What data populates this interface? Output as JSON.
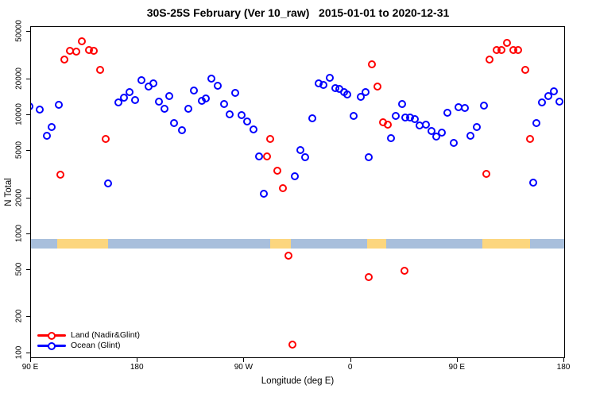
{
  "header": {
    "title": "30S-25S February (Ver 10_raw)   2015-01-01 to 2020-12-31"
  },
  "chart_data": {
    "type": "scatter",
    "title": "30S-25S February (Ver 10_raw)  2015-01-01 to 2020-12-31",
    "xlabel": "Longitude (deg E)",
    "ylabel": "N Total",
    "x_axis": {
      "min_deg": 90,
      "max_deg": 540,
      "note": "axis runs eastward from 90E through 180, 90W, 0, 90E to 180 (450 deg span)",
      "ticks": [
        {
          "deg": 90,
          "label": "90 E"
        },
        {
          "deg": 180,
          "label": "180"
        },
        {
          "deg": 270,
          "label": "90 W"
        },
        {
          "deg": 360,
          "label": "0"
        },
        {
          "deg": 450,
          "label": "90 E"
        },
        {
          "deg": 540,
          "label": "180"
        }
      ]
    },
    "y_axis": {
      "scale": "log",
      "min": 92,
      "max": 55000,
      "ticks": [
        100,
        200,
        500,
        1000,
        2000,
        5000,
        10000,
        20000,
        50000
      ]
    },
    "legend": {
      "position": "bottom-left",
      "items": [
        {
          "label": "Land (Nadir&Glint)",
          "color": "#ff0000"
        },
        {
          "label": "Ocean (Glint)",
          "color": "#0000ff"
        }
      ]
    },
    "coastline_band": {
      "value_from": 750,
      "value_to": 910,
      "ocean_color": "#a8bfdc",
      "land_color": "#fcd67e",
      "segments": [
        {
          "type": "ocean",
          "from_deg": 90,
          "to_deg": 112
        },
        {
          "type": "land",
          "from_deg": 112,
          "to_deg": 155
        },
        {
          "type": "ocean",
          "from_deg": 155,
          "to_deg": 292
        },
        {
          "type": "land",
          "from_deg": 292,
          "to_deg": 309
        },
        {
          "type": "ocean",
          "from_deg": 309,
          "to_deg": 374
        },
        {
          "type": "land",
          "from_deg": 374,
          "to_deg": 390
        },
        {
          "type": "ocean",
          "from_deg": 390,
          "to_deg": 471
        },
        {
          "type": "land",
          "from_deg": 471,
          "to_deg": 511
        },
        {
          "type": "ocean",
          "from_deg": 511,
          "to_deg": 540
        }
      ]
    },
    "series": [
      {
        "name": "Land (Nadir&Glint)",
        "color": "#ff0000",
        "points": [
          [
            132.8,
            41700
          ],
          [
            122.8,
            34700
          ],
          [
            128.1,
            34200
          ],
          [
            138.8,
            35300
          ],
          [
            142.8,
            34700
          ],
          [
            118.1,
            29200
          ],
          [
            148.2,
            23900
          ],
          [
            152.9,
            6310
          ],
          [
            114.7,
            3160
          ],
          [
            291.9,
            6310
          ],
          [
            289.3,
            4470
          ],
          [
            297.9,
            3390
          ],
          [
            302.6,
            2430
          ],
          [
            307.3,
            658
          ],
          [
            310.7,
            117
          ],
          [
            374.9,
            437
          ],
          [
            405.0,
            493
          ],
          [
            377.5,
            26700
          ],
          [
            382.2,
            17400
          ],
          [
            386.9,
            8710
          ],
          [
            390.9,
            8320
          ],
          [
            474.5,
            3210
          ],
          [
            477.2,
            29200
          ],
          [
            483.2,
            35300
          ],
          [
            487.2,
            35300
          ],
          [
            491.9,
            40600
          ],
          [
            497.2,
            35300
          ],
          [
            501.2,
            35300
          ],
          [
            507.2,
            23900
          ],
          [
            511.2,
            6310
          ]
        ]
      },
      {
        "name": "Ocean (Glint)",
        "color": "#0000ff",
        "points": [
          [
            88.7,
            11900
          ],
          [
            97.4,
            11200
          ],
          [
            113.4,
            12200
          ],
          [
            107.4,
            7940
          ],
          [
            103.4,
            6700
          ],
          [
            154.9,
            2660
          ],
          [
            163.6,
            12800
          ],
          [
            168.2,
            14000
          ],
          [
            172.9,
            15700
          ],
          [
            177.6,
            13300
          ],
          [
            182.9,
            19700
          ],
          [
            189.0,
            17400
          ],
          [
            193.6,
            18600
          ],
          [
            197.7,
            13000
          ],
          [
            203.0,
            11300
          ],
          [
            207.0,
            14500
          ],
          [
            211.0,
            8610
          ],
          [
            217.7,
            7500
          ],
          [
            223.1,
            11300
          ],
          [
            227.8,
            16200
          ],
          [
            234.4,
            13200
          ],
          [
            237.8,
            13800
          ],
          [
            242.4,
            20200
          ],
          [
            247.8,
            17600
          ],
          [
            253.2,
            12400
          ],
          [
            257.8,
            10100
          ],
          [
            262.5,
            15400
          ],
          [
            267.8,
            10000
          ],
          [
            272.5,
            8870
          ],
          [
            277.9,
            7590
          ],
          [
            282.6,
            4500
          ],
          [
            286.6,
            2180
          ],
          [
            312.7,
            3080
          ],
          [
            317.3,
            5090
          ],
          [
            321.4,
            4430
          ],
          [
            327.4,
            9400
          ],
          [
            332.7,
            18600
          ],
          [
            336.7,
            18000
          ],
          [
            342.1,
            20500
          ],
          [
            346.8,
            16900
          ],
          [
            350.1,
            16600
          ],
          [
            354.1,
            15700
          ],
          [
            356.8,
            14900
          ],
          [
            362.1,
            9850
          ],
          [
            368.1,
            14300
          ],
          [
            372.2,
            15700
          ],
          [
            374.9,
            4430
          ],
          [
            393.6,
            6370
          ],
          [
            397.6,
            9850
          ],
          [
            402.9,
            12400
          ],
          [
            405.6,
            9550
          ],
          [
            409.6,
            9550
          ],
          [
            413.7,
            9250
          ],
          [
            417.7,
            8210
          ],
          [
            423.0,
            8340
          ],
          [
            427.7,
            7380
          ],
          [
            431.7,
            6610
          ],
          [
            437.0,
            7130
          ],
          [
            441.7,
            10500
          ],
          [
            447.0,
            5850
          ],
          [
            451.1,
            11700
          ],
          [
            456.4,
            11400
          ],
          [
            461.1,
            6700
          ],
          [
            466.4,
            7940
          ],
          [
            472.4,
            12000
          ],
          [
            513.9,
            2710
          ],
          [
            516.6,
            8610
          ],
          [
            521.3,
            12800
          ],
          [
            526.6,
            14500
          ],
          [
            531.3,
            15900
          ],
          [
            536.0,
            12900
          ]
        ]
      }
    ]
  }
}
